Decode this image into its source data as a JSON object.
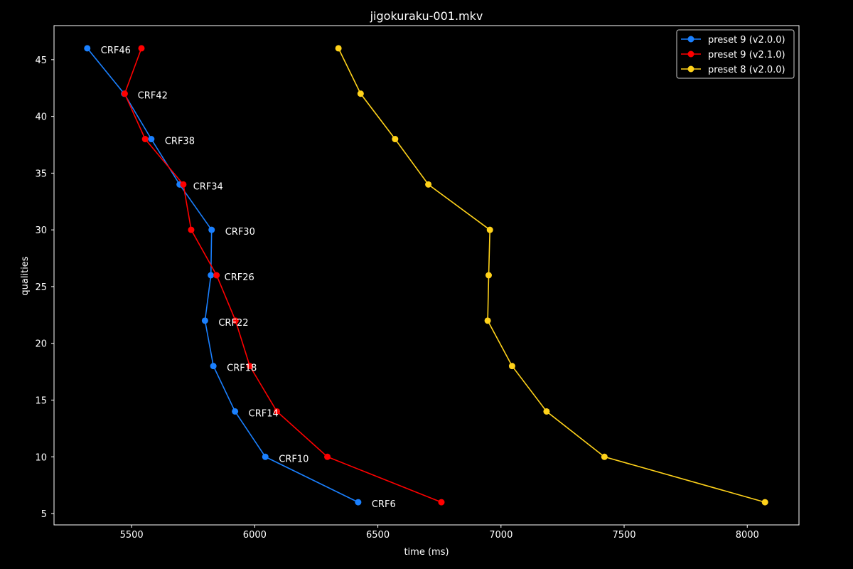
{
  "chart_data": {
    "type": "line",
    "title": "jigokuraku-001.mkv",
    "xlabel": "time (ms)",
    "ylabel": "qualities",
    "xlim": [
      5185,
      8210
    ],
    "ylim": [
      4,
      48
    ],
    "xticks": [
      5500,
      6000,
      6500,
      7000,
      7500,
      8000
    ],
    "yticks": [
      5,
      10,
      15,
      20,
      25,
      30,
      35,
      40,
      45
    ],
    "grid": false,
    "legend_position": "top-right",
    "y": [
      46,
      42,
      38,
      34,
      30,
      26,
      22,
      18,
      14,
      10,
      6
    ],
    "point_labels": [
      "CRF46",
      "CRF42",
      "CRF38",
      "CRF34",
      "CRF30",
      "CRF26",
      "CRF22",
      "CRF18",
      "CRF14",
      "CRF10",
      "CRF6"
    ],
    "series": [
      {
        "name": "preset 9 (v2.0.0)",
        "color": "#1a80ff",
        "x": [
          5320,
          5470,
          5580,
          5695,
          5825,
          5822,
          5798,
          5832,
          5920,
          6043,
          6420
        ]
      },
      {
        "name": "preset 9 (v2.1.0)",
        "color": "#ff0000",
        "x": [
          5540,
          5472,
          5555,
          5710,
          5742,
          5845,
          5922,
          5980,
          6090,
          6295,
          6758
        ]
      },
      {
        "name": "preset 8 (v2.0.0)",
        "color": "#ffd21a",
        "x": [
          6340,
          6430,
          6570,
          6705,
          6955,
          6950,
          6946,
          7045,
          7185,
          7420,
          8072
        ]
      }
    ]
  }
}
